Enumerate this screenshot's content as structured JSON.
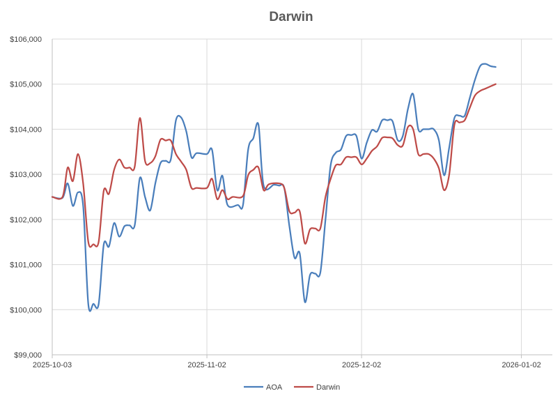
{
  "chart_data": {
    "type": "line",
    "title": "Darwin",
    "xlabel": "",
    "ylabel": "",
    "x_ticks": [
      "2025-10-03",
      "2025-11-02",
      "2025-12-02",
      "2026-01-02"
    ],
    "y_ticks": [
      "$99,000",
      "$100,000",
      "$101,000",
      "$102,000",
      "$103,000",
      "$104,000",
      "$105,000",
      "$106,000"
    ],
    "xlim": [
      "2025-10-03",
      "2026-01-08"
    ],
    "ylim": [
      99000,
      106000
    ],
    "grid": true,
    "legend_position": "bottom",
    "series": [
      {
        "name": "AOA",
        "color": "#4a7ebb",
        "points": [
          [
            "2025-10-03",
            102500
          ],
          [
            "2025-10-05",
            102480
          ],
          [
            "2025-10-06",
            102800
          ],
          [
            "2025-10-07",
            102300
          ],
          [
            "2025-10-08",
            102600
          ],
          [
            "2025-10-09",
            102300
          ],
          [
            "2025-10-10",
            100120
          ],
          [
            "2025-10-11",
            100130
          ],
          [
            "2025-10-12",
            100120
          ],
          [
            "2025-10-13",
            101450
          ],
          [
            "2025-10-14",
            101400
          ],
          [
            "2025-10-15",
            101920
          ],
          [
            "2025-10-16",
            101620
          ],
          [
            "2025-10-17",
            101850
          ],
          [
            "2025-10-18",
            101870
          ],
          [
            "2025-10-19",
            101870
          ],
          [
            "2025-10-20",
            102920
          ],
          [
            "2025-10-21",
            102500
          ],
          [
            "2025-10-22",
            102200
          ],
          [
            "2025-10-23",
            102800
          ],
          [
            "2025-10-24",
            103250
          ],
          [
            "2025-10-25",
            103300
          ],
          [
            "2025-10-26",
            103330
          ],
          [
            "2025-10-27",
            104200
          ],
          [
            "2025-10-28",
            104260
          ],
          [
            "2025-10-29",
            103950
          ],
          [
            "2025-10-30",
            103380
          ],
          [
            "2025-10-31",
            103470
          ],
          [
            "2025-11-02",
            103450
          ],
          [
            "2025-11-03",
            103540
          ],
          [
            "2025-11-04",
            102650
          ],
          [
            "2025-11-05",
            102970
          ],
          [
            "2025-11-06",
            102320
          ],
          [
            "2025-11-08",
            102320
          ],
          [
            "2025-11-09",
            102320
          ],
          [
            "2025-11-10",
            103550
          ],
          [
            "2025-11-11",
            103800
          ],
          [
            "2025-11-12",
            104100
          ],
          [
            "2025-11-13",
            102750
          ],
          [
            "2025-11-15",
            102770
          ],
          [
            "2025-11-16",
            102750
          ],
          [
            "2025-11-17",
            102700
          ],
          [
            "2025-11-18",
            101850
          ],
          [
            "2025-11-19",
            101150
          ],
          [
            "2025-11-20",
            101250
          ],
          [
            "2025-11-21",
            100170
          ],
          [
            "2025-11-22",
            100770
          ],
          [
            "2025-11-23",
            100800
          ],
          [
            "2025-11-24",
            100820
          ],
          [
            "2025-11-25",
            102000
          ],
          [
            "2025-11-26",
            103200
          ],
          [
            "2025-11-27",
            103480
          ],
          [
            "2025-11-28",
            103550
          ],
          [
            "2025-11-29",
            103850
          ],
          [
            "2025-11-30",
            103870
          ],
          [
            "2025-12-01",
            103850
          ],
          [
            "2025-12-02",
            103350
          ],
          [
            "2025-12-03",
            103700
          ],
          [
            "2025-12-04",
            103980
          ],
          [
            "2025-12-05",
            103950
          ],
          [
            "2025-12-06",
            104200
          ],
          [
            "2025-12-07",
            104200
          ],
          [
            "2025-12-08",
            104180
          ],
          [
            "2025-12-09",
            103760
          ],
          [
            "2025-12-10",
            103850
          ],
          [
            "2025-12-11",
            104450
          ],
          [
            "2025-12-12",
            104780
          ],
          [
            "2025-12-13",
            104000
          ],
          [
            "2025-12-14",
            104000
          ],
          [
            "2025-12-15",
            104000
          ],
          [
            "2025-12-16",
            104000
          ],
          [
            "2025-12-17",
            103750
          ],
          [
            "2025-12-18",
            102980
          ],
          [
            "2025-12-19",
            103600
          ],
          [
            "2025-12-20",
            104250
          ],
          [
            "2025-12-21",
            104300
          ],
          [
            "2025-12-22",
            104300
          ],
          [
            "2025-12-23",
            104700
          ],
          [
            "2025-12-24",
            105100
          ],
          [
            "2025-12-25",
            105400
          ],
          [
            "2025-12-26",
            105450
          ],
          [
            "2025-12-27",
            105400
          ],
          [
            "2025-12-28",
            105380
          ]
        ]
      },
      {
        "name": "Darwin",
        "color": "#be4b48",
        "points": [
          [
            "2025-10-03",
            102500
          ],
          [
            "2025-10-05",
            102500
          ],
          [
            "2025-10-06",
            103150
          ],
          [
            "2025-10-07",
            102850
          ],
          [
            "2025-10-08",
            103450
          ],
          [
            "2025-10-09",
            102800
          ],
          [
            "2025-10-10",
            101500
          ],
          [
            "2025-10-11",
            101450
          ],
          [
            "2025-10-12",
            101500
          ],
          [
            "2025-10-13",
            102640
          ],
          [
            "2025-10-14",
            102570
          ],
          [
            "2025-10-15",
            103100
          ],
          [
            "2025-10-16",
            103330
          ],
          [
            "2025-10-17",
            103150
          ],
          [
            "2025-10-18",
            103150
          ],
          [
            "2025-10-19",
            103170
          ],
          [
            "2025-10-20",
            104250
          ],
          [
            "2025-10-21",
            103300
          ],
          [
            "2025-10-22",
            103250
          ],
          [
            "2025-10-23",
            103400
          ],
          [
            "2025-10-24",
            103770
          ],
          [
            "2025-10-25",
            103750
          ],
          [
            "2025-10-26",
            103750
          ],
          [
            "2025-10-27",
            103450
          ],
          [
            "2025-10-28",
            103280
          ],
          [
            "2025-10-29",
            103100
          ],
          [
            "2025-10-30",
            102700
          ],
          [
            "2025-10-31",
            102700
          ],
          [
            "2025-11-02",
            102700
          ],
          [
            "2025-11-03",
            102900
          ],
          [
            "2025-11-04",
            102450
          ],
          [
            "2025-11-05",
            102650
          ],
          [
            "2025-11-06",
            102450
          ],
          [
            "2025-11-07",
            102500
          ],
          [
            "2025-11-09",
            102520
          ],
          [
            "2025-11-10",
            102980
          ],
          [
            "2025-11-11",
            103100
          ],
          [
            "2025-11-12",
            103150
          ],
          [
            "2025-11-13",
            102650
          ],
          [
            "2025-11-14",
            102780
          ],
          [
            "2025-11-16",
            102800
          ],
          [
            "2025-11-17",
            102700
          ],
          [
            "2025-11-18",
            102180
          ],
          [
            "2025-11-19",
            102150
          ],
          [
            "2025-11-20",
            102180
          ],
          [
            "2025-11-21",
            101470
          ],
          [
            "2025-11-22",
            101780
          ],
          [
            "2025-11-23",
            101800
          ],
          [
            "2025-11-24",
            101800
          ],
          [
            "2025-11-25",
            102500
          ],
          [
            "2025-11-26",
            102900
          ],
          [
            "2025-11-27",
            103200
          ],
          [
            "2025-11-28",
            103220
          ],
          [
            "2025-11-29",
            103380
          ],
          [
            "2025-11-30",
            103380
          ],
          [
            "2025-12-01",
            103380
          ],
          [
            "2025-12-02",
            103220
          ],
          [
            "2025-12-03",
            103350
          ],
          [
            "2025-12-04",
            103520
          ],
          [
            "2025-12-05",
            103620
          ],
          [
            "2025-12-06",
            103810
          ],
          [
            "2025-12-07",
            103820
          ],
          [
            "2025-12-08",
            103800
          ],
          [
            "2025-12-09",
            103650
          ],
          [
            "2025-12-10",
            103640
          ],
          [
            "2025-12-11",
            104050
          ],
          [
            "2025-12-12",
            104000
          ],
          [
            "2025-12-13",
            103450
          ],
          [
            "2025-12-14",
            103450
          ],
          [
            "2025-12-15",
            103450
          ],
          [
            "2025-12-16",
            103350
          ],
          [
            "2025-12-17",
            103130
          ],
          [
            "2025-12-18",
            102650
          ],
          [
            "2025-12-19",
            103000
          ],
          [
            "2025-12-20",
            104100
          ],
          [
            "2025-12-21",
            104150
          ],
          [
            "2025-12-22",
            104200
          ],
          [
            "2025-12-23",
            104480
          ],
          [
            "2025-12-24",
            104750
          ],
          [
            "2025-12-25",
            104850
          ],
          [
            "2025-12-26",
            104900
          ],
          [
            "2025-12-27",
            104950
          ],
          [
            "2025-12-28",
            105000
          ]
        ]
      }
    ]
  }
}
